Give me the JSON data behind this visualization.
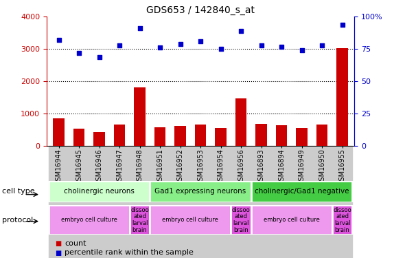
{
  "title": "GDS653 / 142840_s_at",
  "samples": [
    "GSM16944",
    "GSM16945",
    "GSM16946",
    "GSM16947",
    "GSM16948",
    "GSM16951",
    "GSM16952",
    "GSM16953",
    "GSM16954",
    "GSM16956",
    "GSM16893",
    "GSM16894",
    "GSM16949",
    "GSM16950",
    "GSM16955"
  ],
  "counts": [
    850,
    530,
    420,
    660,
    1820,
    570,
    620,
    660,
    545,
    1470,
    690,
    640,
    560,
    660,
    3020
  ],
  "percentile": [
    82,
    72,
    69,
    78,
    91,
    76,
    79,
    81,
    75,
    89,
    78,
    77,
    74,
    78,
    94
  ],
  "bar_color": "#cc0000",
  "dot_color": "#0000cc",
  "ylim_left": [
    0,
    4000
  ],
  "ylim_right": [
    0,
    100
  ],
  "yticks_left": [
    0,
    1000,
    2000,
    3000,
    4000
  ],
  "yticks_right": [
    0,
    25,
    50,
    75,
    100
  ],
  "cell_type_groups": [
    {
      "label": "cholinergic neurons",
      "start": 0,
      "end": 5,
      "color": "#ccffcc"
    },
    {
      "label": "Gad1 expressing neurons",
      "start": 5,
      "end": 10,
      "color": "#88ee88"
    },
    {
      "label": "cholinergic/Gad1 negative",
      "start": 10,
      "end": 15,
      "color": "#44cc44"
    }
  ],
  "protocol_groups": [
    {
      "label": "embryo cell culture",
      "start": 0,
      "end": 4,
      "color": "#ee99ee"
    },
    {
      "label": "dissoo\nated\nlarval\nbrain",
      "start": 4,
      "end": 5,
      "color": "#dd55dd"
    },
    {
      "label": "embryo cell culture",
      "start": 5,
      "end": 9,
      "color": "#ee99ee"
    },
    {
      "label": "dissoo\nated\nlarval\nbrain",
      "start": 9,
      "end": 10,
      "color": "#dd55dd"
    },
    {
      "label": "embryo cell culture",
      "start": 10,
      "end": 14,
      "color": "#ee99ee"
    },
    {
      "label": "dissoo\nated\nlarval\nbrain",
      "start": 14,
      "end": 15,
      "color": "#dd55dd"
    }
  ],
  "legend_count_label": "count",
  "legend_pct_label": "percentile rank within the sample",
  "cell_type_label": "cell type",
  "protocol_label": "protocol",
  "xticklabel_bg": "#cccccc"
}
